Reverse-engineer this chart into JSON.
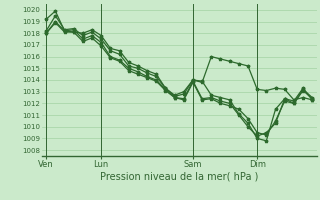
{
  "background_color": "#cbeacb",
  "grid_color": "#99cc99",
  "line_color": "#2d6a2d",
  "ylabel_color": "#336633",
  "ylim": [
    1007.5,
    1020.5
  ],
  "yticks": [
    1008,
    1009,
    1010,
    1011,
    1012,
    1013,
    1014,
    1015,
    1016,
    1017,
    1018,
    1019,
    1020
  ],
  "xtick_labels": [
    "Ven",
    "Lun",
    "Sam",
    "Dim"
  ],
  "xtick_positions": [
    0,
    6,
    16,
    23
  ],
  "vline_positions": [
    0,
    6,
    16,
    23
  ],
  "xlim": [
    -0.5,
    29.5
  ],
  "xlabel": "Pression niveau de la mer( hPa )",
  "series": [
    [
      1019.2,
      1019.9,
      1018.2,
      1018.1,
      1018.0,
      1018.3,
      1017.8,
      1016.7,
      1016.5,
      1015.5,
      1015.2,
      1014.8,
      1014.5,
      1013.3,
      1012.7,
      1013.0,
      1014.0,
      1013.8,
      1016.0,
      1015.8,
      1015.6,
      1015.4,
      1015.2,
      1013.2,
      1013.1,
      1013.3,
      1013.2,
      1012.3,
      1012.5,
      1012.3
    ],
    [
      1018.2,
      1019.5,
      1018.3,
      1018.4,
      1017.8,
      1018.1,
      1017.5,
      1016.5,
      1016.2,
      1015.2,
      1015.0,
      1014.6,
      1014.3,
      1013.3,
      1012.6,
      1012.8,
      1014.0,
      1013.9,
      1012.7,
      1012.5,
      1012.3,
      1011.1,
      1010.3,
      1009.0,
      1008.8,
      1011.5,
      1012.4,
      1012.2,
      1013.3,
      1012.3
    ],
    [
      1018.0,
      1019.0,
      1018.2,
      1018.3,
      1017.5,
      1017.8,
      1017.2,
      1016.0,
      1015.7,
      1015.0,
      1014.7,
      1014.3,
      1014.0,
      1013.2,
      1012.5,
      1012.4,
      1013.9,
      1012.4,
      1012.5,
      1012.2,
      1012.0,
      1011.0,
      1010.0,
      1009.2,
      1009.5,
      1010.3,
      1012.4,
      1012.0,
      1013.2,
      1012.5
    ],
    [
      1018.0,
      1018.9,
      1018.1,
      1018.1,
      1017.3,
      1017.6,
      1016.9,
      1015.9,
      1015.6,
      1014.8,
      1014.5,
      1014.2,
      1013.9,
      1013.1,
      1012.5,
      1012.3,
      1013.8,
      1012.3,
      1012.4,
      1012.0,
      1011.8,
      1011.5,
      1010.7,
      1009.5,
      1009.3,
      1010.5,
      1012.2,
      1012.0,
      1013.1,
      1012.4
    ]
  ]
}
